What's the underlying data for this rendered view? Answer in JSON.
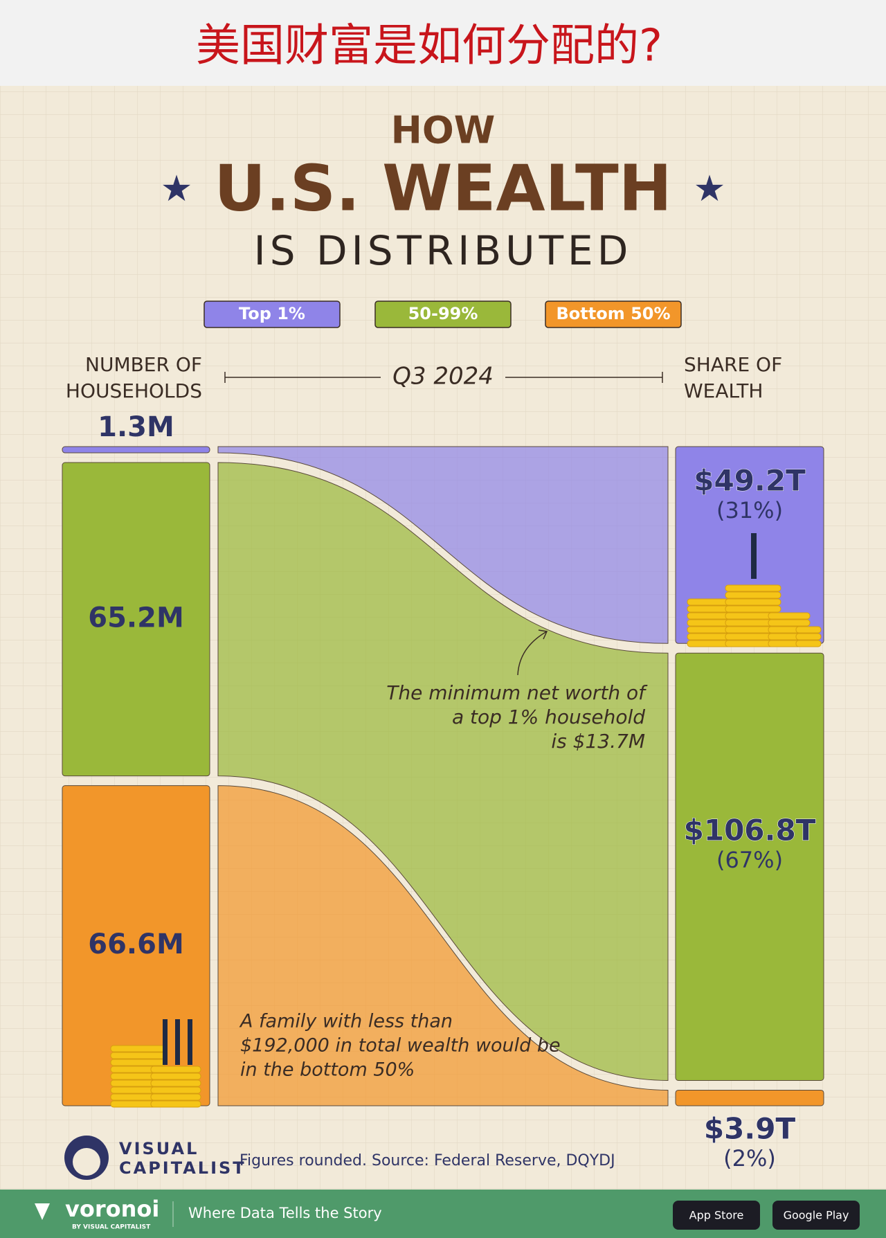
{
  "banner_title": "美国财富是如何分配的?",
  "chart_data": {
    "type": "sankey",
    "title_lines": [
      "HOW",
      "U.S. WEALTH",
      "IS DISTRIBUTED"
    ],
    "period": "Q3 2024",
    "left_axis_label": [
      "NUMBER OF",
      "HOUSEHOLDS"
    ],
    "right_axis_label": [
      "SHARE OF",
      "WEALTH"
    ],
    "categories": [
      "Top 1%",
      "50-99%",
      "Bottom 50%"
    ],
    "colors": [
      "#8f84e8",
      "#9ab83a",
      "#f2962a"
    ],
    "households": {
      "values": [
        1.3,
        65.2,
        66.6
      ],
      "value_labels": [
        "1.3M",
        "65.2M",
        "66.6M"
      ]
    },
    "wealth": {
      "values": [
        49.2,
        106.8,
        3.9
      ],
      "value_labels": [
        "$49.2T",
        "$106.8T",
        "$3.9T"
      ]
    },
    "share": {
      "values": [
        31,
        67,
        2
      ],
      "value_labels": [
        "(31%)",
        "(67%)",
        "(2%)"
      ]
    },
    "annotations": [
      {
        "lines": [
          "The minimum net worth of",
          "a top 1% household",
          "is $13.7M"
        ]
      },
      {
        "lines": [
          "A family with less than",
          "$192,000 in total wealth would be",
          "in the bottom 50%"
        ]
      }
    ],
    "source": "Figures rounded. Source: Federal Reserve, DQYDJ"
  },
  "brand": [
    "VISUAL",
    "CAPITALIST"
  ],
  "footer": {
    "logo": "voronoi",
    "logo_sub": "BY VISUAL CAPITALIST",
    "tagline": "Where Data Tells the Story",
    "buttons": [
      "App Store",
      "Google Play"
    ]
  }
}
